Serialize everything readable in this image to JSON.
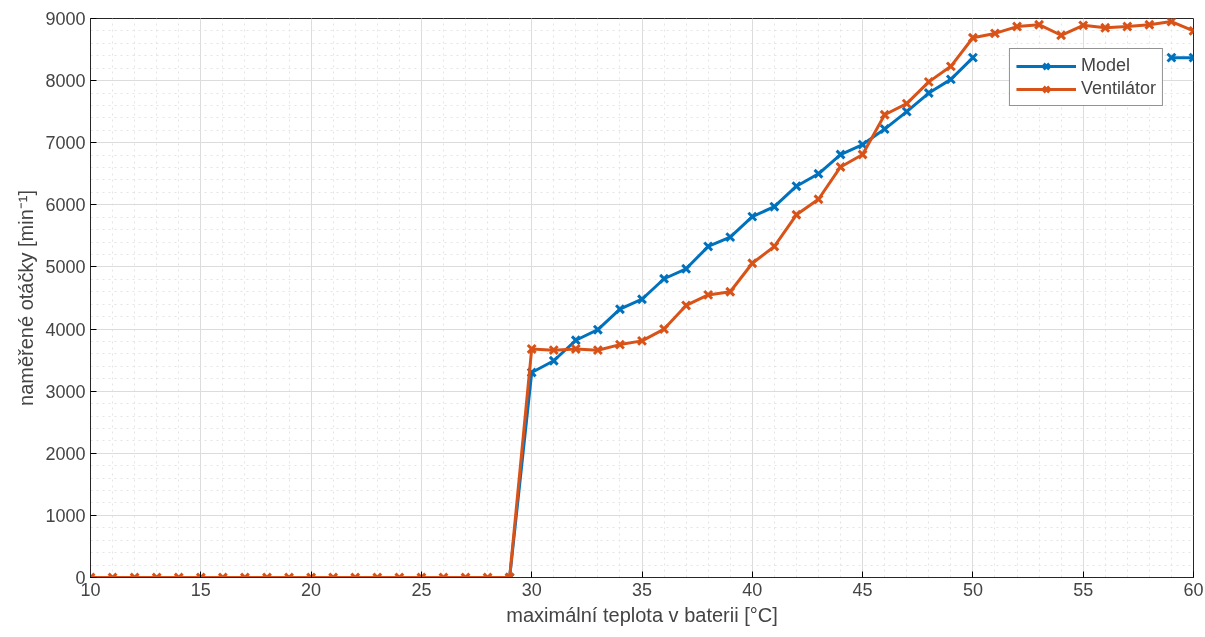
{
  "chart_data": {
    "type": "line",
    "xlabel": "maximální teplota v baterii [°C]",
    "ylabel": "naměřené otáčky [min⁻¹]",
    "x": [
      10,
      11,
      12,
      13,
      14,
      15,
      16,
      17,
      18,
      19,
      20,
      21,
      22,
      23,
      24,
      25,
      26,
      27,
      28,
      29,
      30,
      31,
      32,
      33,
      34,
      35,
      36,
      37,
      38,
      39,
      40,
      41,
      42,
      43,
      44,
      45,
      46,
      47,
      48,
      49,
      50,
      51,
      52,
      53,
      54,
      55,
      56,
      57,
      58,
      59,
      60
    ],
    "series": [
      {
        "name": "Model",
        "color": "#0072bd",
        "values": [
          null,
          null,
          null,
          null,
          null,
          null,
          null,
          null,
          null,
          null,
          null,
          null,
          null,
          null,
          null,
          null,
          null,
          null,
          null,
          0,
          3300,
          3490,
          3820,
          3990,
          4320,
          4480,
          4810,
          4970,
          5330,
          5480,
          5810,
          5970,
          6300,
          6500,
          6810,
          6970,
          7220,
          7500,
          7800,
          8020,
          8370,
          null,
          null,
          null,
          null,
          null,
          null,
          null,
          null,
          8370,
          8370
        ]
      },
      {
        "name": "Ventilátor",
        "color": "#d95319",
        "values": [
          0,
          0,
          0,
          0,
          0,
          0,
          0,
          0,
          0,
          0,
          0,
          0,
          0,
          0,
          0,
          0,
          0,
          0,
          0,
          0,
          3680,
          3660,
          3680,
          3660,
          3750,
          3810,
          4000,
          4380,
          4550,
          4600,
          5060,
          5330,
          5840,
          6090,
          6610,
          6810,
          7450,
          7630,
          7980,
          8230,
          8690,
          8760,
          8870,
          8900,
          8730,
          8890,
          8850,
          8870,
          8900,
          8950,
          8800
        ]
      }
    ],
    "xlim": [
      10,
      60
    ],
    "xticks": [
      10,
      15,
      20,
      25,
      30,
      35,
      40,
      45,
      50,
      55,
      60
    ],
    "ylim": [
      0,
      9000
    ],
    "yticks": [
      0,
      1000,
      2000,
      3000,
      4000,
      5000,
      6000,
      7000,
      8000,
      9000
    ],
    "grid": true,
    "legend": "top right",
    "marker": "cross",
    "line_style": "solid"
  }
}
